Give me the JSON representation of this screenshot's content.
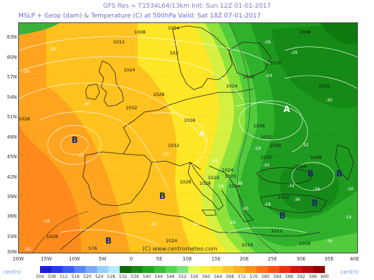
{
  "header": {
    "line1": "GFS Res = T1534L64/13km    Init: Sun 12Z 01-01-2017",
    "line2": "MSLP + Geop (dam) & Temperature (C) at 500hPa  Valid: Sat 18Z 07-01-2017"
  },
  "lat_labels": [
    "63N",
    "60N",
    "57N",
    "54N",
    "51N",
    "48N",
    "45N",
    "42N",
    "39N",
    "36N",
    "33N",
    "30N"
  ],
  "lon_labels": [
    "20W",
    "15W",
    "10W",
    "5W",
    "0",
    "5E",
    "10E",
    "15E",
    "20E",
    "25E",
    "30E",
    "35E",
    "40E"
  ],
  "credit": "(C) www.centrometeo.com",
  "logo": "centro",
  "scale_values": [
    "504",
    "508",
    "512",
    "516",
    "520",
    "524",
    "528",
    "532",
    "536",
    "540",
    "544",
    "548",
    "552",
    "556",
    "560",
    "564",
    "568",
    "572",
    "576",
    "580",
    "584",
    "588",
    "592",
    "596",
    "600"
  ],
  "scale_colors": [
    "#1c1ce0",
    "#2838ff",
    "#3c5cff",
    "#5a84ff",
    "#78aaff",
    "#98d0ff",
    "#b8eaff",
    "#0a6a0a",
    "#138a13",
    "#1ea81e",
    "#32c232",
    "#52d652",
    "#7ae67a",
    "#e8ff60",
    "#f8f040",
    "#ffe030",
    "#ffc828",
    "#ffb020",
    "#ff9018",
    "#ff7010",
    "#ff5010",
    "#ee3010",
    "#d81010",
    "#b80808",
    "#900000"
  ],
  "pressure_labels": [
    "1008",
    "1004",
    "1012",
    "1008",
    "1024",
    "1020",
    "1016",
    "1032",
    "1028",
    "1032",
    "1036",
    "1032",
    "1024",
    "1028",
    "1036",
    "1032",
    "1028",
    "1024",
    "1020",
    "1016",
    "1012",
    "1008",
    "1004",
    "1012",
    "1016",
    "1028",
    "1024",
    "1028",
    "552",
    "576",
    "1028",
    "1020",
    "1016",
    "1032"
  ],
  "temp_labels": [
    "-20",
    "-18",
    "-24",
    "-20",
    "-24",
    "-26",
    "-24",
    "-28",
    "-30",
    "-32",
    "-28",
    "-26",
    "-22",
    "-30",
    "-28",
    "-26",
    "-24",
    "-22",
    "-18",
    "-20",
    "-16",
    "-14",
    "-20",
    "-28",
    "-36",
    "-32",
    "-26",
    "-30",
    "-34"
  ],
  "highs_lows": [
    "B",
    "B",
    "B",
    "B",
    "B",
    "B",
    "B",
    "A",
    "A"
  ]
}
